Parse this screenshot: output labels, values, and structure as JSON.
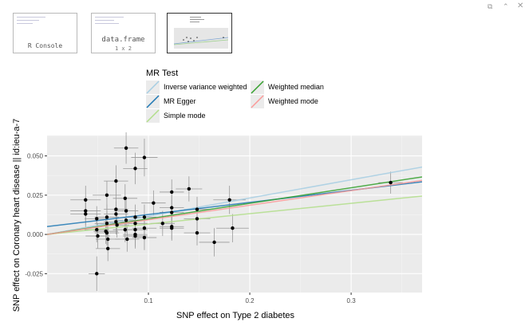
{
  "window_controls": {
    "restore_icon": "restore-icon",
    "maximize_icon": "maximize-icon",
    "close_icon": "close-icon"
  },
  "thumbnails": {
    "console_label": "R Console",
    "frame_label": "data.frame",
    "frame_dims": "1 x 2"
  },
  "legend": {
    "title": "MR Test",
    "items": [
      {
        "label": "Inverse variance weighted",
        "color": "#a6cee3"
      },
      {
        "label": "MR Egger",
        "color": "#1f78b4"
      },
      {
        "label": "Simple mode",
        "color": "#b2df8a"
      },
      {
        "label": "Weighted median",
        "color": "#33a02c"
      },
      {
        "label": "Weighted mode",
        "color": "#fb9a99"
      }
    ]
  },
  "chart_data": {
    "type": "scatter",
    "xlabel": "SNP effect on Type 2 diabetes",
    "ylabel": "SNP effect on Coronary heart disease || id:ieu-a-7",
    "xlim": [
      0.0,
      0.37
    ],
    "ylim": [
      -0.037,
      0.063
    ],
    "x_ticks": [
      0.1,
      0.2,
      0.3
    ],
    "x_tick_labels": [
      "0.1",
      "0.2",
      "0.3"
    ],
    "y_ticks": [
      -0.025,
      0.0,
      0.025,
      0.05
    ],
    "y_tick_labels": [
      "-0.025",
      "0.000",
      "0.025",
      "0.050"
    ],
    "grid": true,
    "points": [
      {
        "x": 0.038,
        "y": 0.015,
        "xe": 0.015,
        "ye": 0.009
      },
      {
        "x": 0.038,
        "y": 0.013,
        "xe": 0.015,
        "ye": 0.009
      },
      {
        "x": 0.038,
        "y": 0.022,
        "xe": 0.015,
        "ye": 0.009
      },
      {
        "x": 0.049,
        "y": -0.025,
        "xe": 0.008,
        "ye": 0.011
      },
      {
        "x": 0.049,
        "y": 0.003,
        "xe": 0.012,
        "ye": 0.008
      },
      {
        "x": 0.049,
        "y": 0.01,
        "xe": 0.012,
        "ye": 0.008
      },
      {
        "x": 0.05,
        "y": -0.001,
        "xe": 0.012,
        "ye": 0.008
      },
      {
        "x": 0.058,
        "y": 0.002,
        "xe": 0.012,
        "ye": 0.008
      },
      {
        "x": 0.059,
        "y": 0.011,
        "xe": 0.012,
        "ye": 0.008
      },
      {
        "x": 0.059,
        "y": 0.025,
        "xe": 0.014,
        "ye": 0.009
      },
      {
        "x": 0.059,
        "y": 0.007,
        "xe": 0.012,
        "ye": 0.008
      },
      {
        "x": 0.059,
        "y": 0.001,
        "xe": 0.012,
        "ye": 0.008
      },
      {
        "x": 0.06,
        "y": -0.003,
        "xe": 0.012,
        "ye": 0.008
      },
      {
        "x": 0.06,
        "y": -0.009,
        "xe": 0.012,
        "ye": 0.008
      },
      {
        "x": 0.068,
        "y": 0.008,
        "xe": 0.012,
        "ye": 0.008
      },
      {
        "x": 0.068,
        "y": 0.013,
        "xe": 0.012,
        "ye": 0.008
      },
      {
        "x": 0.068,
        "y": 0.016,
        "xe": 0.012,
        "ye": 0.008
      },
      {
        "x": 0.068,
        "y": 0.034,
        "xe": 0.012,
        "ye": 0.01
      },
      {
        "x": 0.069,
        "y": 0.006,
        "xe": 0.012,
        "ye": 0.008
      },
      {
        "x": 0.077,
        "y": 0.023,
        "xe": 0.012,
        "ye": 0.009
      },
      {
        "x": 0.077,
        "y": 0.003,
        "xe": 0.012,
        "ye": 0.008
      },
      {
        "x": 0.078,
        "y": 0.055,
        "xe": 0.012,
        "ye": 0.01
      },
      {
        "x": 0.078,
        "y": 0.015,
        "xe": 0.012,
        "ye": 0.008
      },
      {
        "x": 0.078,
        "y": 0.009,
        "xe": 0.012,
        "ye": 0.008
      },
      {
        "x": 0.079,
        "y": -0.003,
        "xe": 0.012,
        "ye": 0.008
      },
      {
        "x": 0.087,
        "y": 0.042,
        "xe": 0.012,
        "ye": 0.01
      },
      {
        "x": 0.087,
        "y": 0.011,
        "xe": 0.012,
        "ye": 0.008
      },
      {
        "x": 0.087,
        "y": 0.007,
        "xe": 0.012,
        "ye": 0.008
      },
      {
        "x": 0.087,
        "y": 0.003,
        "xe": 0.012,
        "ye": 0.008
      },
      {
        "x": 0.087,
        "y": 0.0,
        "xe": 0.012,
        "ye": 0.008
      },
      {
        "x": 0.087,
        "y": -0.001,
        "xe": 0.012,
        "ye": 0.008
      },
      {
        "x": 0.096,
        "y": 0.049,
        "xe": 0.013,
        "ye": 0.012
      },
      {
        "x": 0.096,
        "y": 0.011,
        "xe": 0.012,
        "ye": 0.008
      },
      {
        "x": 0.096,
        "y": 0.004,
        "xe": 0.012,
        "ye": 0.008
      },
      {
        "x": 0.096,
        "y": -0.002,
        "xe": 0.012,
        "ye": 0.008
      },
      {
        "x": 0.105,
        "y": 0.02,
        "xe": 0.012,
        "ye": 0.008
      },
      {
        "x": 0.114,
        "y": 0.007,
        "xe": 0.012,
        "ye": 0.008
      },
      {
        "x": 0.123,
        "y": 0.027,
        "xe": 0.012,
        "ye": 0.008
      },
      {
        "x": 0.123,
        "y": 0.017,
        "xe": 0.012,
        "ye": 0.008
      },
      {
        "x": 0.123,
        "y": 0.014,
        "xe": 0.012,
        "ye": 0.008
      },
      {
        "x": 0.123,
        "y": 0.005,
        "xe": 0.012,
        "ye": 0.008
      },
      {
        "x": 0.123,
        "y": 0.004,
        "xe": 0.012,
        "ye": 0.008
      },
      {
        "x": 0.14,
        "y": 0.029,
        "xe": 0.013,
        "ye": 0.008
      },
      {
        "x": 0.148,
        "y": 0.016,
        "xe": 0.013,
        "ye": 0.008
      },
      {
        "x": 0.148,
        "y": 0.01,
        "xe": 0.013,
        "ye": 0.008
      },
      {
        "x": 0.148,
        "y": 0.001,
        "xe": 0.013,
        "ye": 0.008
      },
      {
        "x": 0.165,
        "y": -0.005,
        "xe": 0.015,
        "ye": 0.009
      },
      {
        "x": 0.18,
        "y": 0.022,
        "xe": 0.016,
        "ye": 0.009
      },
      {
        "x": 0.183,
        "y": 0.004,
        "xe": 0.016,
        "ye": 0.009
      },
      {
        "x": 0.339,
        "y": 0.033,
        "xe": 0.012,
        "ye": 0.007
      }
    ],
    "lines": [
      {
        "name": "Inverse variance weighted",
        "color": "#a6cee3",
        "intercept": 0.0,
        "slope": 0.116
      },
      {
        "name": "MR Egger",
        "color": "#1f78b4",
        "intercept": 0.005,
        "slope": 0.077
      },
      {
        "name": "Simple mode",
        "color": "#b2df8a",
        "intercept": 0.0,
        "slope": 0.066
      },
      {
        "name": "Weighted median",
        "color": "#33a02c",
        "intercept": 0.0,
        "slope": 0.099
      },
      {
        "name": "Weighted mode",
        "color": "#fb9a99",
        "intercept": 0.0,
        "slope": 0.093
      }
    ]
  }
}
